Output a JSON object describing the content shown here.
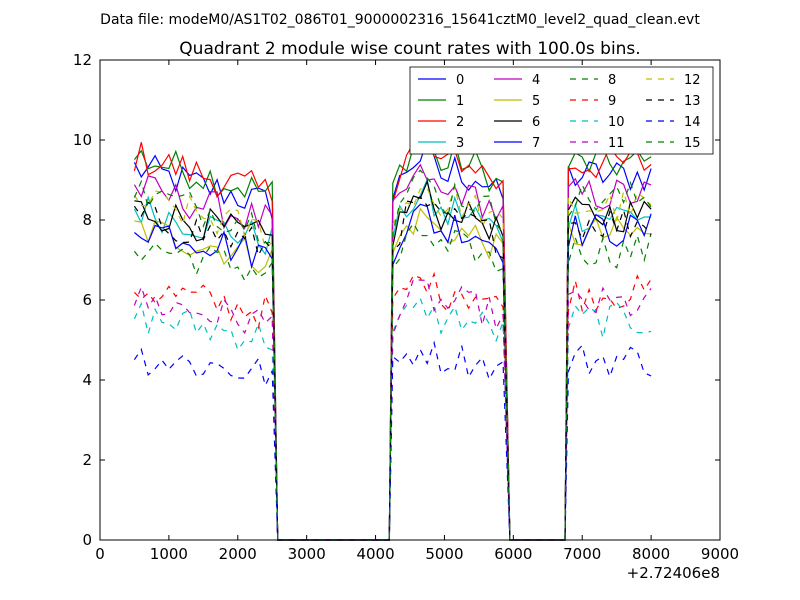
{
  "suptitle": "Data file: modeM0/AS1T02_086T01_9000002316_15641cztM0_level2_quad_clean.evt",
  "chart_data": {
    "type": "line",
    "title": "Quadrant 2 module wise count rates with 100.0s bins.",
    "xlabel": "",
    "ylabel": "",
    "x_offset_label": "+2.72406e8",
    "xlim": [
      0,
      9000
    ],
    "ylim": [
      0,
      12
    ],
    "xticks": [
      0,
      1000,
      2000,
      3000,
      4000,
      5000,
      6000,
      7000,
      8000,
      9000
    ],
    "yticks": [
      0,
      2,
      4,
      6,
      8,
      10,
      12
    ],
    "grid": false,
    "legend_position": "top-right",
    "legend_columns": 4,
    "segments": [
      {
        "start": 500,
        "end": 2500,
        "ramp_end": 2580
      },
      {
        "start": 4250,
        "end": 5850,
        "ramp_start": 4200,
        "ramp_end": 5950
      },
      {
        "start": 6800,
        "end": 8050,
        "ramp_start": 6750
      }
    ],
    "series": [
      {
        "name": "0",
        "color": "#0000ff",
        "dash": "solid",
        "level": 9.3
      },
      {
        "name": "1",
        "color": "#008000",
        "dash": "solid",
        "level": 9.6
      },
      {
        "name": "2",
        "color": "#ff0000",
        "dash": "solid",
        "level": 9.6
      },
      {
        "name": "3",
        "color": "#00bfbf",
        "dash": "solid",
        "level": 8.3
      },
      {
        "name": "4",
        "color": "#bf00bf",
        "dash": "solid",
        "level": 8.8
      },
      {
        "name": "5",
        "color": "#bfbf00",
        "dash": "solid",
        "level": 7.8
      },
      {
        "name": "6",
        "color": "#000000",
        "dash": "solid",
        "level": 8.3
      },
      {
        "name": "7",
        "color": "#0000ff",
        "dash": "solid",
        "level": 7.9
      },
      {
        "name": "8",
        "color": "#008000",
        "dash": "dashed",
        "level": 7.4
      },
      {
        "name": "9",
        "color": "#ff0000",
        "dash": "dashed",
        "level": 6.3
      },
      {
        "name": "10",
        "color": "#00bfbf",
        "dash": "dashed",
        "level": 5.6
      },
      {
        "name": "11",
        "color": "#bf00bf",
        "dash": "dashed",
        "level": 6.0
      },
      {
        "name": "12",
        "color": "#bfbf00",
        "dash": "dashed",
        "level": 8.5
      },
      {
        "name": "13",
        "color": "#000000",
        "dash": "dashed",
        "level": 8.1
      },
      {
        "name": "14",
        "color": "#0000ff",
        "dash": "dashed",
        "level": 4.6
      },
      {
        "name": "15",
        "color": "#008000",
        "dash": "dashed",
        "level": 8.7
      }
    ]
  }
}
